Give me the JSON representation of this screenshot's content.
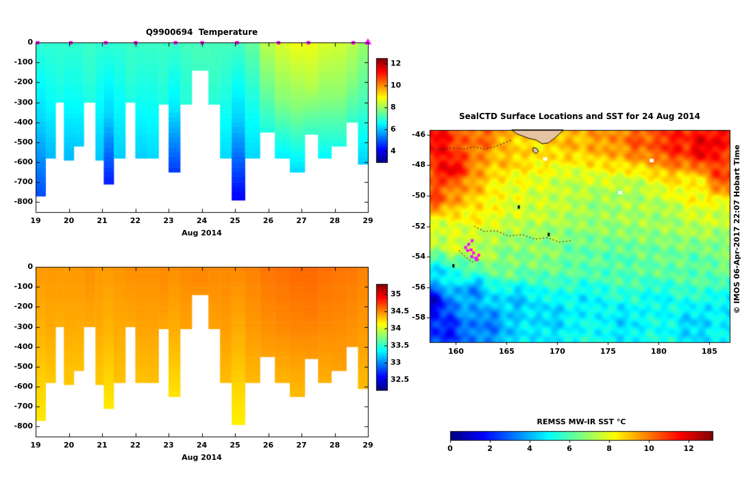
{
  "chart_data": [
    {
      "id": "temperature_section",
      "type": "heatmap",
      "title": "Q9900694  Temperature",
      "xlabel": "Aug 2014",
      "x_ticks": [
        19,
        20,
        21,
        22,
        23,
        24,
        25,
        26,
        27,
        28,
        29
      ],
      "y_ticks": [
        0,
        -100,
        -200,
        -300,
        -400,
        -500,
        -600,
        -700,
        -800
      ],
      "xlim": [
        19,
        29
      ],
      "ylim": [
        0,
        -850
      ],
      "grid": false,
      "colorbar": {
        "ticks": [
          12,
          10,
          8,
          6,
          4
        ],
        "clim": [
          3,
          12.5
        ],
        "colormap": "jet"
      },
      "marker_color": "#ff00ff",
      "surface_marker_days": [
        19.05,
        20.05,
        21.1,
        22.0,
        23.2,
        24.0,
        25.05,
        26.3,
        27.2,
        28.55
      ],
      "final_marker_day": 29.0,
      "columns_format": [
        "day_start",
        "day_end",
        "bottom_depth_m",
        "temp_surface_C",
        "temp_mid_C",
        "temp_bottom_C"
      ],
      "columns": [
        [
          19.0,
          19.3,
          -770,
          7.0,
          6.2,
          4.9
        ],
        [
          19.3,
          19.6,
          -580,
          7.0,
          6.6,
          5.9
        ],
        [
          19.6,
          19.85,
          -300,
          7.0,
          6.9,
          6.7
        ],
        [
          19.85,
          20.15,
          -590,
          7.0,
          6.6,
          5.9
        ],
        [
          20.15,
          20.45,
          -520,
          7.0,
          6.7,
          6.1
        ],
        [
          20.45,
          20.8,
          -300,
          7.1,
          7.0,
          6.8
        ],
        [
          20.8,
          21.05,
          -590,
          7.0,
          6.6,
          6.0
        ],
        [
          21.05,
          21.35,
          -710,
          7.0,
          6.2,
          4.4
        ],
        [
          21.35,
          21.7,
          -580,
          7.0,
          6.6,
          6.1
        ],
        [
          21.7,
          22.0,
          -300,
          7.1,
          7.0,
          6.8
        ],
        [
          22.0,
          22.35,
          -580,
          7.1,
          6.7,
          6.1
        ],
        [
          22.35,
          22.7,
          -580,
          7.1,
          6.7,
          6.2
        ],
        [
          22.7,
          23.0,
          -310,
          7.1,
          7.0,
          6.8
        ],
        [
          23.0,
          23.35,
          -650,
          7.1,
          6.4,
          4.7
        ],
        [
          23.35,
          23.7,
          -310,
          7.2,
          7.0,
          6.9
        ],
        [
          23.7,
          24.2,
          -140,
          7.2,
          7.2,
          7.1
        ],
        [
          24.2,
          24.55,
          -310,
          7.2,
          7.1,
          6.9
        ],
        [
          24.55,
          24.9,
          -580,
          7.2,
          6.8,
          6.2
        ],
        [
          24.9,
          25.3,
          -790,
          7.2,
          6.1,
          4.1
        ],
        [
          25.3,
          25.75,
          -580,
          7.5,
          6.8,
          6.2
        ],
        [
          25.75,
          26.2,
          -450,
          8.3,
          7.6,
          6.8
        ],
        [
          26.2,
          26.65,
          -580,
          8.6,
          7.8,
          6.4
        ],
        [
          26.65,
          27.1,
          -650,
          8.8,
          7.8,
          6.2
        ],
        [
          27.1,
          27.5,
          -460,
          8.8,
          8.2,
          7.0
        ],
        [
          27.5,
          27.9,
          -580,
          8.6,
          7.8,
          6.5
        ],
        [
          27.9,
          28.35,
          -520,
          8.5,
          7.9,
          6.8
        ],
        [
          28.35,
          28.7,
          -400,
          8.3,
          7.8,
          7.0
        ],
        [
          28.7,
          29.0,
          -610,
          8.0,
          7.2,
          6.1
        ]
      ]
    },
    {
      "id": "salinity_section",
      "type": "heatmap",
      "title": "",
      "xlabel": "Aug 2014",
      "x_ticks": [
        19,
        20,
        21,
        22,
        23,
        24,
        25,
        26,
        27,
        28,
        29
      ],
      "y_ticks": [
        0,
        -100,
        -200,
        -300,
        -400,
        -500,
        -600,
        -700,
        -800
      ],
      "xlim": [
        19,
        29
      ],
      "ylim": [
        0,
        -850
      ],
      "grid": false,
      "colorbar": {
        "ticks": [
          35,
          34.5,
          34,
          33.5,
          33,
          32.5
        ],
        "clim": [
          32.2,
          35.3
        ],
        "colormap": "jet"
      },
      "columns_format": [
        "day_start",
        "day_end",
        "bottom_depth_m",
        "sal_surface",
        "sal_mid",
        "sal_bottom"
      ],
      "columns": [
        [
          19.0,
          19.3,
          -770,
          34.45,
          34.35,
          34.2
        ],
        [
          19.3,
          19.6,
          -580,
          34.45,
          34.4,
          34.3
        ],
        [
          19.6,
          19.85,
          -300,
          34.45,
          34.42,
          34.38
        ],
        [
          19.85,
          20.15,
          -590,
          34.45,
          34.4,
          34.3
        ],
        [
          20.15,
          20.45,
          -520,
          34.45,
          34.4,
          34.32
        ],
        [
          20.45,
          20.8,
          -300,
          34.48,
          34.44,
          34.4
        ],
        [
          20.8,
          21.05,
          -590,
          34.45,
          34.4,
          34.3
        ],
        [
          21.05,
          21.35,
          -710,
          34.45,
          34.35,
          34.2
        ],
        [
          21.35,
          21.7,
          -580,
          34.46,
          34.4,
          34.32
        ],
        [
          21.7,
          22.0,
          -300,
          34.48,
          34.44,
          34.4
        ],
        [
          22.0,
          22.35,
          -580,
          34.48,
          34.42,
          34.32
        ],
        [
          22.35,
          22.7,
          -580,
          34.48,
          34.42,
          34.33
        ],
        [
          22.7,
          23.0,
          -310,
          34.5,
          34.46,
          34.4
        ],
        [
          23.0,
          23.35,
          -650,
          34.48,
          34.38,
          34.22
        ],
        [
          23.35,
          23.7,
          -310,
          34.5,
          34.46,
          34.42
        ],
        [
          23.7,
          24.2,
          -140,
          34.5,
          34.5,
          34.46
        ],
        [
          24.2,
          24.55,
          -310,
          34.5,
          34.46,
          34.42
        ],
        [
          24.55,
          24.9,
          -580,
          34.5,
          34.44,
          34.34
        ],
        [
          24.9,
          25.3,
          -790,
          34.5,
          34.36,
          34.18
        ],
        [
          25.3,
          25.75,
          -580,
          34.52,
          34.45,
          34.35
        ],
        [
          25.75,
          26.2,
          -450,
          34.56,
          34.5,
          34.42
        ],
        [
          26.2,
          26.65,
          -580,
          34.58,
          34.5,
          34.36
        ],
        [
          26.65,
          27.1,
          -650,
          34.6,
          34.5,
          34.34
        ],
        [
          27.1,
          27.5,
          -460,
          34.6,
          34.54,
          34.44
        ],
        [
          27.5,
          27.9,
          -580,
          34.58,
          34.5,
          34.38
        ],
        [
          27.9,
          28.35,
          -520,
          34.56,
          34.5,
          34.42
        ],
        [
          28.35,
          28.7,
          -400,
          34.55,
          34.5,
          34.44
        ],
        [
          28.7,
          29.0,
          -610,
          34.52,
          34.45,
          34.34
        ]
      ]
    },
    {
      "id": "sst_map",
      "type": "heatmap",
      "title": "SealCTD Surface Locations and SST for 24 Aug 2014",
      "credit": "© IMOS 06-Apr-2017 22:07 Hobart Time",
      "x_ticks": [
        160,
        165,
        170,
        175,
        180,
        185
      ],
      "y_ticks": [
        -46,
        -48,
        -50,
        -52,
        -54,
        -56,
        -58
      ],
      "lon_range": [
        157.4,
        187.0
      ],
      "lat_range": [
        -45.7,
        -59.6
      ],
      "clim": [
        0,
        13.2
      ],
      "colormap": "jet",
      "track_color": "#ff00ff",
      "land_color": "#e6c3a1",
      "control_points_format": [
        "lon",
        "lat",
        "sst_C"
      ],
      "control_points": [
        [
          158.0,
          -46.5,
          11.6
        ],
        [
          159.5,
          -48.3,
          11.8
        ],
        [
          162.5,
          -46.2,
          10.2
        ],
        [
          165.0,
          -47.5,
          9.0
        ],
        [
          168.5,
          -46.8,
          8.6
        ],
        [
          171.0,
          -46.3,
          9.2
        ],
        [
          174.5,
          -46.2,
          9.6
        ],
        [
          178.0,
          -46.3,
          10.4
        ],
        [
          181.5,
          -46.5,
          11.2
        ],
        [
          184.5,
          -46.8,
          11.9
        ],
        [
          186.5,
          -48.5,
          10.8
        ],
        [
          186.5,
          -45.9,
          11.5
        ],
        [
          157.8,
          -50.0,
          10.6
        ],
        [
          157.6,
          -52.3,
          7.6
        ],
        [
          160.5,
          -49.5,
          9.6
        ],
        [
          162.0,
          -51.0,
          8.4
        ],
        [
          165.5,
          -49.5,
          8.0
        ],
        [
          168.0,
          -50.5,
          7.6
        ],
        [
          171.0,
          -49.5,
          7.4
        ],
        [
          174.0,
          -50.8,
          6.9
        ],
        [
          177.5,
          -50.0,
          7.1
        ],
        [
          180.5,
          -51.5,
          7.0
        ],
        [
          183.5,
          -49.5,
          8.2
        ],
        [
          186.0,
          -51.5,
          7.6
        ],
        [
          160.0,
          -53.2,
          7.8
        ],
        [
          162.5,
          -53.8,
          7.4
        ],
        [
          165.0,
          -54.5,
          6.6
        ],
        [
          168.5,
          -53.5,
          6.8
        ],
        [
          172.0,
          -54.0,
          6.2
        ],
        [
          176.0,
          -54.5,
          6.0
        ],
        [
          180.0,
          -54.0,
          6.3
        ],
        [
          184.0,
          -54.5,
          6.1
        ],
        [
          186.5,
          -53.0,
          6.6
        ],
        [
          157.6,
          -57.0,
          1.2
        ],
        [
          159.0,
          -58.8,
          2.0
        ],
        [
          161.5,
          -56.2,
          3.4
        ],
        [
          163.0,
          -58.5,
          3.2
        ],
        [
          166.0,
          -57.0,
          4.2
        ],
        [
          169.5,
          -58.0,
          4.4
        ],
        [
          173.0,
          -57.0,
          4.8
        ],
        [
          176.5,
          -58.3,
          4.6
        ],
        [
          180.0,
          -57.0,
          5.0
        ],
        [
          183.5,
          -58.5,
          4.4
        ],
        [
          186.5,
          -57.5,
          4.8
        ],
        [
          158.5,
          -55.3,
          4.6
        ],
        [
          161.0,
          -55.0,
          5.8
        ]
      ],
      "land_polygons": [
        [
          [
            165.5,
            -45.69
          ],
          [
            166.0,
            -45.95
          ],
          [
            166.6,
            -46.1
          ],
          [
            167.2,
            -46.25
          ],
          [
            167.9,
            -46.35
          ],
          [
            168.5,
            -46.6
          ],
          [
            169.1,
            -46.55
          ],
          [
            169.7,
            -46.25
          ],
          [
            170.2,
            -45.95
          ],
          [
            170.6,
            -45.69
          ]
        ],
        [
          [
            167.6,
            -46.85
          ],
          [
            167.95,
            -46.9
          ],
          [
            168.15,
            -47.1
          ],
          [
            167.9,
            -47.25
          ],
          [
            167.6,
            -47.1
          ]
        ]
      ],
      "contour_lines": [
        {
          "color": "#333333",
          "points": [
            [
              157.4,
              -46.9
            ],
            [
              158.6,
              -47.0
            ],
            [
              159.6,
              -46.85
            ],
            [
              160.8,
              -46.95
            ],
            [
              161.8,
              -46.8
            ],
            [
              162.8,
              -46.95
            ],
            [
              163.8,
              -46.8
            ],
            [
              164.8,
              -46.55
            ],
            [
              165.5,
              -46.35
            ]
          ]
        },
        {
          "color": "#8b2500",
          "points": [
            [
              161.8,
              -52.0
            ],
            [
              162.8,
              -52.35
            ],
            [
              164.0,
              -52.3
            ],
            [
              165.2,
              -52.65
            ],
            [
              166.5,
              -52.55
            ],
            [
              167.8,
              -52.85
            ],
            [
              169.0,
              -52.75
            ],
            [
              170.2,
              -53.05
            ],
            [
              171.3,
              -52.95
            ]
          ]
        },
        {
          "color": "#8b2500",
          "points": [
            [
              160.3,
              -53.6
            ],
            [
              160.9,
              -54.0
            ],
            [
              161.6,
              -54.35
            ],
            [
              162.3,
              -54.2
            ]
          ]
        }
      ],
      "island_markers": [
        [
          166.2,
          -50.75
        ],
        [
          169.15,
          -52.55
        ],
        [
          159.75,
          -54.6
        ]
      ],
      "white_patches": [
        [
          168.8,
          -47.6
        ],
        [
          179.3,
          -47.7
        ],
        [
          176.2,
          -49.8
        ]
      ],
      "seal_track": [
        [
          161.6,
          -52.95
        ],
        [
          161.25,
          -53.2
        ],
        [
          160.95,
          -53.4
        ],
        [
          161.15,
          -53.6
        ],
        [
          161.5,
          -53.55
        ],
        [
          161.75,
          -53.75
        ],
        [
          161.55,
          -54.0
        ],
        [
          161.95,
          -54.1
        ],
        [
          162.25,
          -53.9
        ],
        [
          162.05,
          -54.2
        ]
      ]
    },
    {
      "id": "sst_colorbar",
      "type": "colorbar",
      "label": "REMSS MW-IR SST °C",
      "ticks": [
        0,
        2,
        4,
        6,
        8,
        10,
        12
      ],
      "clim": [
        0,
        13.2
      ],
      "colormap": "jet"
    }
  ]
}
